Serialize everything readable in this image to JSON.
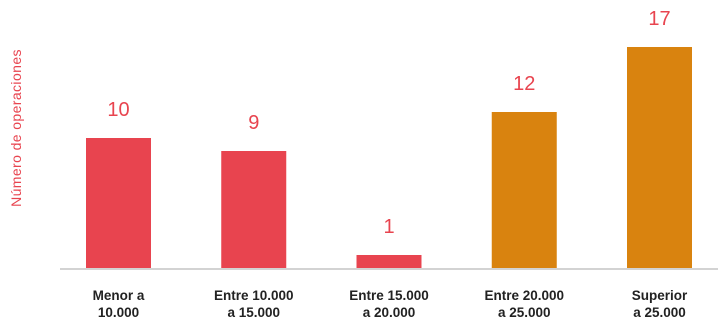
{
  "chart_data": {
    "type": "bar",
    "title": "",
    "xlabel": "",
    "ylabel": "Número de operaciones",
    "categories": [
      "Menor a\n10.000",
      "Entre 10.000\na 15.000",
      "Entre 15.000\na 20.000",
      "Entre 20.000\na 25.000",
      "Superior\na 25.000"
    ],
    "values": [
      10,
      9,
      1,
      12,
      17
    ],
    "ylim": [
      0,
      17
    ],
    "data_labels_shown": true,
    "y_axis_ticks_shown": false,
    "grid": false,
    "legend": "none",
    "colors": {
      "bars": [
        "#E8444F",
        "#E8444F",
        "#E8444F",
        "#D9830F",
        "#D9830F"
      ],
      "value_labels": "#E8444F",
      "ylabel": "#E8444F",
      "category_labels": "#222222",
      "baseline": "#D3D3D3"
    }
  }
}
